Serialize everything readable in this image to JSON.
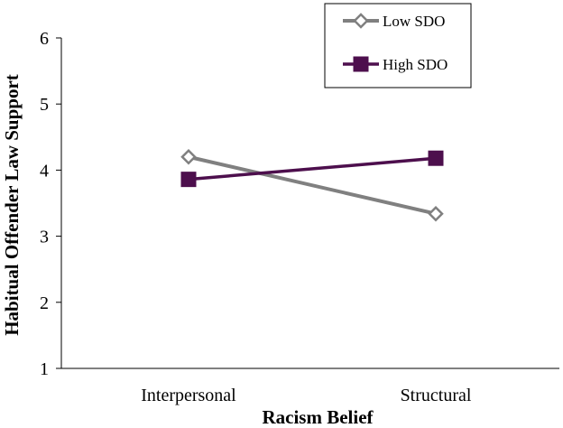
{
  "chart_data": {
    "type": "line",
    "xlabel": "Racism Belief",
    "ylabel": "Habitual Offender Law Support",
    "categories": [
      "Interpersonal",
      "Structural"
    ],
    "ylim": [
      1,
      6
    ],
    "yticks": [
      "1",
      "2",
      "3",
      "4",
      "5",
      "6"
    ],
    "grid": false,
    "legend_position": "top-right",
    "series": [
      {
        "name": "Low SDO",
        "values": [
          4.2,
          3.34
        ],
        "color": "#808080",
        "marker": "diamond-open"
      },
      {
        "name": "High SDO",
        "values": [
          3.86,
          4.18
        ],
        "color": "#4d0f4d",
        "marker": "square-filled"
      }
    ]
  }
}
